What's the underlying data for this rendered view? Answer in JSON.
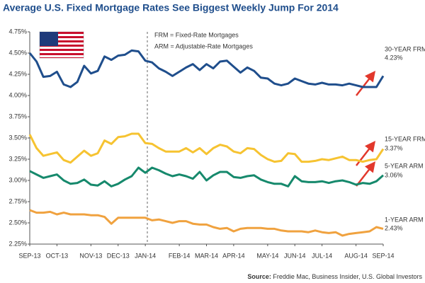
{
  "chart_data": {
    "type": "line",
    "title": "Average U.S. Fixed Mortgage Rates See Biggest Weekly Jump For 2014",
    "annotations": [
      "FRM = Fixed-Rate Mortgages",
      "ARM = Adjustable-Rate Mortgages"
    ],
    "source": {
      "label": "Source:",
      "text": "Freddie Mac, Business Insider, U.S. Global Investors"
    },
    "categories": [
      "SEP-13",
      null,
      null,
      null,
      "OCT-13",
      null,
      null,
      null,
      null,
      "NOV-13",
      null,
      null,
      null,
      "DEC-13",
      null,
      null,
      null,
      "JAN-14",
      null,
      null,
      null,
      null,
      "FEB-14",
      null,
      null,
      null,
      "MAR-14",
      null,
      null,
      null,
      "APR-14",
      null,
      null,
      null,
      null,
      "MAY-14",
      null,
      null,
      null,
      "JUN-14",
      null,
      null,
      null,
      "JUL-14",
      null,
      null,
      null,
      null,
      "AUG-14",
      null,
      null,
      null,
      "SEP-14"
    ],
    "ylim": [
      2.25,
      4.75
    ],
    "yticks": [
      {
        "value": 2.25,
        "label": "2.25%"
      },
      {
        "value": 2.5,
        "label": "2.50%"
      },
      {
        "value": 2.75,
        "label": "2.75%"
      },
      {
        "value": 3,
        "label": "3.00%"
      },
      {
        "value": 3.25,
        "label": "3.25%"
      },
      {
        "value": 3.5,
        "label": "3.50%"
      },
      {
        "value": 3.75,
        "label": "3.75%"
      },
      {
        "value": 4,
        "label": "4.00%"
      },
      {
        "value": 4.25,
        "label": "4.25%"
      },
      {
        "value": 4.5,
        "label": "4.50%"
      },
      {
        "value": 4.75,
        "label": "4.75%"
      }
    ],
    "grid": false,
    "series": [
      {
        "name": "30-YEAR FRM",
        "color": "#1f4e8c",
        "values": [
          4.5,
          4.4,
          4.22,
          4.23,
          4.28,
          4.13,
          4.1,
          4.16,
          4.35,
          4.26,
          4.29,
          4.46,
          4.42,
          4.47,
          4.48,
          4.53,
          4.52,
          4.41,
          4.39,
          4.32,
          4.28,
          4.23,
          4.28,
          4.33,
          4.37,
          4.3,
          4.37,
          4.32,
          4.4,
          4.41,
          4.34,
          4.27,
          4.33,
          4.29,
          4.21,
          4.2,
          4.14,
          4.12,
          4.14,
          4.2,
          4.17,
          4.14,
          4.13,
          4.15,
          4.13,
          4.13,
          4.12,
          4.14,
          4.12,
          4.1,
          4.1,
          4.1,
          4.23
        ],
        "value_labels": [
          null,
          null,
          null,
          null,
          null,
          null,
          null,
          null,
          null,
          null,
          null,
          null,
          null,
          null,
          null,
          null,
          null,
          null,
          null,
          null,
          null,
          null,
          null,
          null,
          null,
          null,
          null,
          null,
          null,
          null,
          null,
          null,
          null,
          null,
          null,
          null,
          null,
          null,
          null,
          null,
          null,
          null,
          null,
          null,
          null,
          null,
          null,
          null,
          null,
          null,
          null,
          null,
          "4.23%"
        ]
      },
      {
        "name": "15-YEAR FRM",
        "color": "#f6c331",
        "values": [
          3.54,
          3.38,
          3.29,
          3.31,
          3.33,
          3.24,
          3.21,
          3.28,
          3.35,
          3.29,
          3.32,
          3.47,
          3.43,
          3.51,
          3.52,
          3.55,
          3.55,
          3.44,
          3.43,
          3.38,
          3.34,
          3.34,
          3.34,
          3.38,
          3.33,
          3.38,
          3.31,
          3.38,
          3.42,
          3.4,
          3.34,
          3.32,
          3.38,
          3.37,
          3.3,
          3.25,
          3.22,
          3.23,
          3.32,
          3.31,
          3.22,
          3.22,
          3.23,
          3.25,
          3.24,
          3.26,
          3.28,
          3.24,
          3.24,
          3.22,
          3.24,
          3.25,
          3.37
        ],
        "value_labels": [
          null,
          null,
          null,
          null,
          null,
          null,
          null,
          null,
          null,
          null,
          null,
          null,
          null,
          null,
          null,
          null,
          null,
          null,
          null,
          null,
          null,
          null,
          null,
          null,
          null,
          null,
          null,
          null,
          null,
          null,
          null,
          null,
          null,
          null,
          null,
          null,
          null,
          null,
          null,
          null,
          null,
          null,
          null,
          null,
          null,
          null,
          null,
          null,
          null,
          null,
          null,
          null,
          "3.37%"
        ]
      },
      {
        "name": "5-YEAR ARM",
        "color": "#16896c",
        "values": [
          3.11,
          3.07,
          3.03,
          3.05,
          3.07,
          3.0,
          2.96,
          2.97,
          3.01,
          2.95,
          2.94,
          2.99,
          2.93,
          2.96,
          3.01,
          3.05,
          3.15,
          3.09,
          3.15,
          3.12,
          3.08,
          3.05,
          3.07,
          3.05,
          3.02,
          3.1,
          3.0,
          3.06,
          3.1,
          3.1,
          3.04,
          3.03,
          3.05,
          3.06,
          3.01,
          2.98,
          2.96,
          2.96,
          2.93,
          3.05,
          2.99,
          2.98,
          2.98,
          2.99,
          2.97,
          2.99,
          3.0,
          2.98,
          2.95,
          2.97,
          2.96,
          2.99,
          3.06
        ],
        "value_labels": [
          null,
          null,
          null,
          null,
          null,
          null,
          null,
          null,
          null,
          null,
          null,
          null,
          null,
          null,
          null,
          null,
          null,
          null,
          null,
          null,
          null,
          null,
          null,
          null,
          null,
          null,
          null,
          null,
          null,
          null,
          null,
          null,
          null,
          null,
          null,
          null,
          null,
          null,
          null,
          null,
          null,
          null,
          null,
          null,
          null,
          null,
          null,
          null,
          null,
          null,
          null,
          null,
          "3.06%"
        ]
      },
      {
        "name": "1-YEAR ARM",
        "color": "#f0a23f",
        "values": [
          2.65,
          2.62,
          2.62,
          2.63,
          2.6,
          2.62,
          2.6,
          2.6,
          2.6,
          2.59,
          2.59,
          2.57,
          2.49,
          2.56,
          2.56,
          2.56,
          2.56,
          2.56,
          2.53,
          2.54,
          2.52,
          2.5,
          2.52,
          2.52,
          2.49,
          2.48,
          2.48,
          2.45,
          2.43,
          2.44,
          2.4,
          2.43,
          2.44,
          2.44,
          2.44,
          2.43,
          2.43,
          2.41,
          2.4,
          2.4,
          2.4,
          2.39,
          2.41,
          2.39,
          2.38,
          2.39,
          2.35,
          2.37,
          2.38,
          2.39,
          2.4,
          2.45,
          2.43
        ],
        "value_labels": [
          null,
          null,
          null,
          null,
          null,
          null,
          null,
          null,
          null,
          null,
          null,
          null,
          null,
          null,
          null,
          null,
          null,
          null,
          null,
          null,
          null,
          null,
          null,
          null,
          null,
          null,
          null,
          null,
          null,
          null,
          null,
          null,
          null,
          null,
          null,
          null,
          null,
          null,
          null,
          null,
          null,
          null,
          null,
          null,
          null,
          null,
          null,
          null,
          null,
          null,
          null,
          null,
          "2.43%"
        ]
      }
    ]
  }
}
